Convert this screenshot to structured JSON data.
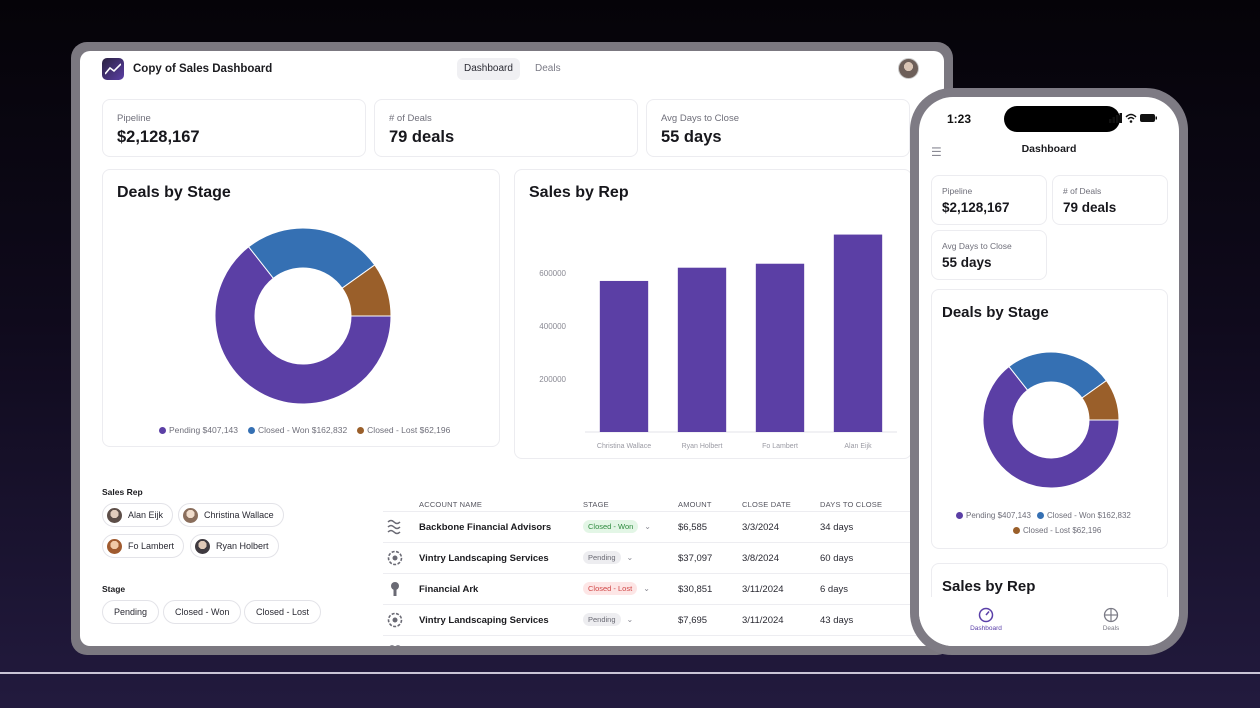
{
  "app": {
    "title": "Copy of Sales Dashboard",
    "tabs": [
      "Dashboard",
      "Deals"
    ]
  },
  "kpis": [
    {
      "label": "Pipeline",
      "value": "$2,128,167"
    },
    {
      "label": "# of Deals",
      "value": "79 deals"
    },
    {
      "label": "Avg Days to Close",
      "value": "55 days"
    }
  ],
  "deals_by_stage": {
    "title": "Deals by Stage",
    "legend": [
      "Pending $407,143",
      "Closed - Won $162,832",
      "Closed - Lost $62,196"
    ]
  },
  "sales_by_rep": {
    "title": "Sales by Rep"
  },
  "filters": {
    "sales_rep_label": "Sales Rep",
    "reps": [
      "Alan Eijk",
      "Christina Wallace",
      "Fo Lambert",
      "Ryan Holbert"
    ],
    "stage_label": "Stage",
    "stages": [
      "Pending",
      "Closed - Won",
      "Closed - Lost"
    ]
  },
  "table": {
    "headers": [
      "ACCOUNT NAME",
      "STAGE",
      "AMOUNT",
      "CLOSE DATE",
      "DAYS TO CLOSE"
    ],
    "rows": [
      {
        "account": "Backbone Financial Advisors",
        "stage": "Closed - Won",
        "amount": "$6,585",
        "close_date": "3/3/2024",
        "days": "34 days"
      },
      {
        "account": "Vintry Landscaping Services",
        "stage": "Pending",
        "amount": "$37,097",
        "close_date": "3/8/2024",
        "days": "60 days"
      },
      {
        "account": "Financial Ark",
        "stage": "Closed - Lost",
        "amount": "$30,851",
        "close_date": "3/11/2024",
        "days": "6 days"
      },
      {
        "account": "Vintry Landscaping Services",
        "stage": "Pending",
        "amount": "$7,695",
        "close_date": "3/11/2024",
        "days": "43 days"
      }
    ]
  },
  "phone": {
    "time": "1:23",
    "title": "Dashboard",
    "kpis": [
      {
        "label": "Pipeline",
        "value": "$2,128,167"
      },
      {
        "label": "# of Deals",
        "value": "79 deals"
      },
      {
        "label": "Avg Days to Close",
        "value": "55 days"
      }
    ],
    "deals_title": "Deals by Stage",
    "legend": [
      "Pending $407,143",
      "Closed - Won $162,832",
      "Closed - Lost $62,196"
    ],
    "sales_title": "Sales by Rep",
    "nav": [
      "Dashboard",
      "Deals"
    ]
  },
  "colors": {
    "pending": "#5b3fa5",
    "won": "#3570b3",
    "lost": "#9a5f2a",
    "bar": "#5b3fa5"
  },
  "chart_data": [
    {
      "type": "pie",
      "title": "Deals by Stage",
      "categories": [
        "Pending",
        "Closed - Won",
        "Closed - Lost"
      ],
      "values": [
        407143,
        162832,
        62196
      ],
      "legend": "bottom"
    },
    {
      "type": "bar",
      "title": "Sales by Rep",
      "categories": [
        "Christina Wallace",
        "Ryan Holbert",
        "Fo Lambert",
        "Alan Eijk"
      ],
      "values": [
        570000,
        620000,
        635000,
        745000
      ],
      "yticks": [
        200000,
        400000,
        600000
      ],
      "ylim": [
        0,
        800000
      ],
      "grid": false
    }
  ]
}
